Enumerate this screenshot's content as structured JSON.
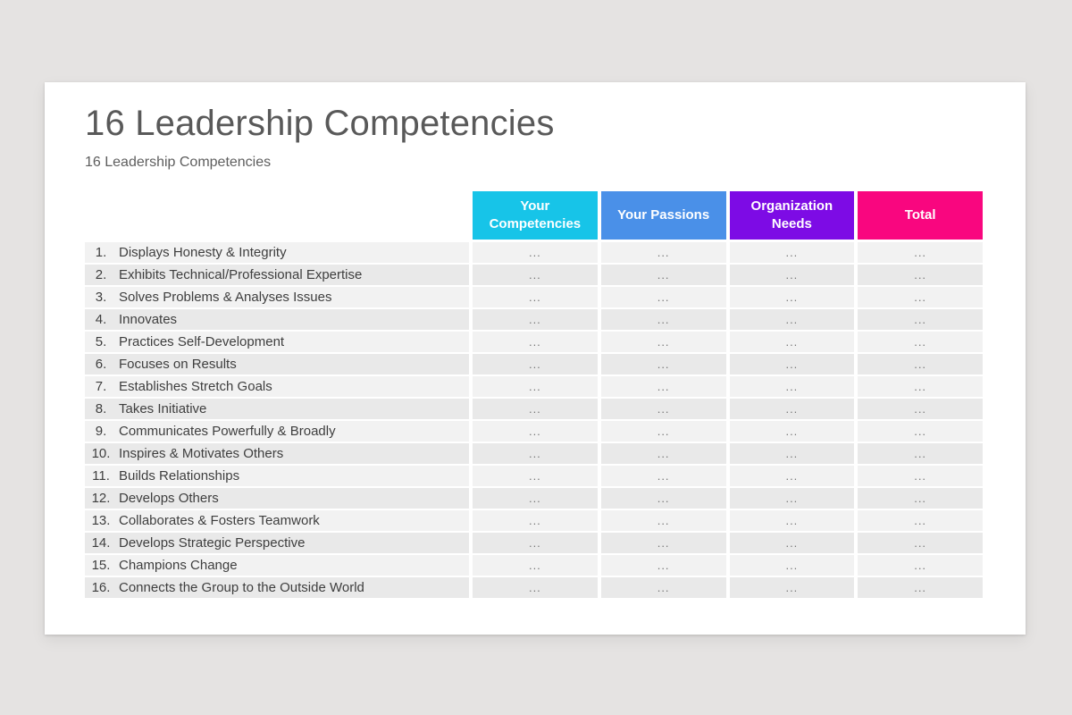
{
  "slide": {
    "title": "16 Leadership Competencies",
    "subtitle": "16 Leadership Competencies"
  },
  "table": {
    "header": {
      "columns": [
        {
          "label": "Your Competencies",
          "color": "#17C4E8"
        },
        {
          "label": "Your Passions",
          "color": "#4A90E8"
        },
        {
          "label": "Organization Needs",
          "color": "#7D0BE5"
        },
        {
          "label": "Total",
          "color": "#F9067F"
        }
      ]
    },
    "rows": [
      {
        "num": "1.",
        "label": "Displays Honesty & Integrity",
        "values": [
          "...",
          "...",
          "...",
          "..."
        ]
      },
      {
        "num": "2.",
        "label": "Exhibits Technical/Professional Expertise",
        "values": [
          "...",
          "...",
          "...",
          "..."
        ]
      },
      {
        "num": "3.",
        "label": "Solves Problems & Analyses Issues",
        "values": [
          "...",
          "...",
          "...",
          "..."
        ]
      },
      {
        "num": "4.",
        "label": "Innovates",
        "values": [
          "...",
          "...",
          "...",
          "..."
        ]
      },
      {
        "num": "5.",
        "label": "Practices Self-Development",
        "values": [
          "...",
          "...",
          "...",
          "..."
        ]
      },
      {
        "num": "6.",
        "label": "Focuses on Results",
        "values": [
          "...",
          "...",
          "...",
          "..."
        ]
      },
      {
        "num": "7.",
        "label": "Establishes Stretch Goals",
        "values": [
          "...",
          "...",
          "...",
          "..."
        ]
      },
      {
        "num": "8.",
        "label": "Takes Initiative",
        "values": [
          "...",
          "...",
          "...",
          "..."
        ]
      },
      {
        "num": "9.",
        "label": "Communicates Powerfully & Broadly",
        "values": [
          "...",
          "...",
          "...",
          "..."
        ]
      },
      {
        "num": "10.",
        "label": "Inspires & Motivates Others",
        "values": [
          "...",
          "...",
          "...",
          "..."
        ]
      },
      {
        "num": "11.",
        "label": "Builds Relationships",
        "values": [
          "...",
          "...",
          "...",
          "..."
        ]
      },
      {
        "num": "12.",
        "label": "Develops Others",
        "values": [
          "...",
          "...",
          "...",
          "..."
        ]
      },
      {
        "num": "13.",
        "label": "Collaborates & Fosters Teamwork",
        "values": [
          "...",
          "...",
          "...",
          "..."
        ]
      },
      {
        "num": "14.",
        "label": "Develops Strategic Perspective",
        "values": [
          "...",
          "...",
          "...",
          "..."
        ]
      },
      {
        "num": "15.",
        "label": "Champions Change",
        "values": [
          "...",
          "...",
          "...",
          "..."
        ]
      },
      {
        "num": "16.",
        "label": "Connects the Group to the Outside World",
        "values": [
          "...",
          "...",
          "...",
          "..."
        ]
      }
    ]
  },
  "colors": {
    "page_background": "#E5E3E2",
    "card_background": "#FFFFFF",
    "row_odd": "#F2F2F2",
    "row_even": "#E9E9E9",
    "title_text": "#595959",
    "row_text": "#3E3E3E",
    "header_text": "#FFFFFF"
  }
}
